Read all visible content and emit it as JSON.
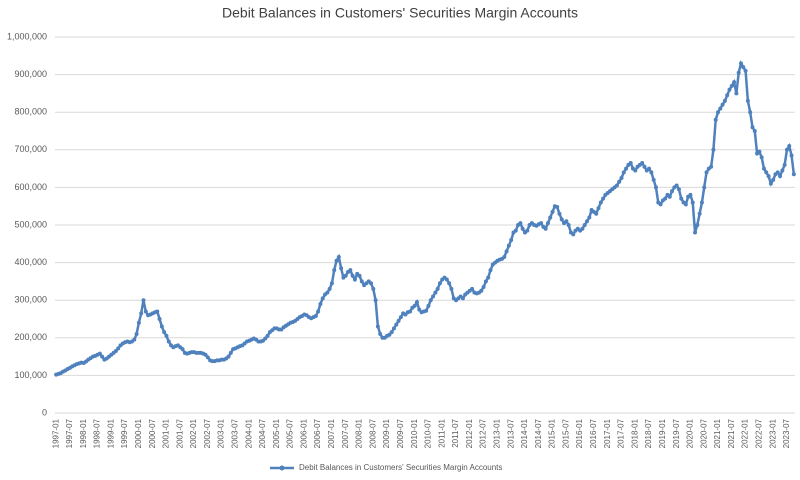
{
  "chart_data": {
    "type": "line",
    "title": "Debit Balances in Customers' Securities Margin Accounts",
    "categories": [
      "1997-01",
      null,
      null,
      null,
      null,
      null,
      "1997-07",
      null,
      null,
      null,
      null,
      null,
      "1998-01",
      null,
      null,
      null,
      null,
      null,
      "1998-07",
      null,
      null,
      null,
      null,
      null,
      "1999-01",
      null,
      null,
      null,
      null,
      null,
      "1999-07",
      null,
      null,
      null,
      null,
      null,
      "2000-01",
      null,
      null,
      null,
      null,
      null,
      "2000-07",
      null,
      null,
      null,
      null,
      null,
      "2001-01",
      null,
      null,
      null,
      null,
      null,
      "2001-07",
      null,
      null,
      null,
      null,
      null,
      "2002-01",
      null,
      null,
      null,
      null,
      null,
      "2002-07",
      null,
      null,
      null,
      null,
      null,
      "2003-01",
      null,
      null,
      null,
      null,
      null,
      "2003-07",
      null,
      null,
      null,
      null,
      null,
      "2004-01",
      null,
      null,
      null,
      null,
      null,
      "2004-07",
      null,
      null,
      null,
      null,
      null,
      "2005-01",
      null,
      null,
      null,
      null,
      null,
      "2005-07",
      null,
      null,
      null,
      null,
      null,
      "2006-01",
      null,
      null,
      null,
      null,
      null,
      "2006-07",
      null,
      null,
      null,
      null,
      null,
      "2007-01",
      null,
      null,
      null,
      null,
      null,
      "2007-07",
      null,
      null,
      null,
      null,
      null,
      "2008-01",
      null,
      null,
      null,
      null,
      null,
      "2008-07",
      null,
      null,
      null,
      null,
      null,
      "2009-01",
      null,
      null,
      null,
      null,
      null,
      "2009-07",
      null,
      null,
      null,
      null,
      null,
      "2010-01",
      null,
      null,
      null,
      null,
      null,
      "2010-07",
      null,
      null,
      null,
      null,
      null,
      "2011-01",
      null,
      null,
      null,
      null,
      null,
      "2011-07",
      null,
      null,
      null,
      null,
      null,
      "2012-01",
      null,
      null,
      null,
      null,
      null,
      "2012-07",
      null,
      null,
      null,
      null,
      null,
      "2013-01",
      null,
      null,
      null,
      null,
      null,
      "2013-07",
      null,
      null,
      null,
      null,
      null,
      "2014-01",
      null,
      null,
      null,
      null,
      null,
      "2014-07",
      null,
      null,
      null,
      null,
      null,
      "2015-01",
      null,
      null,
      null,
      null,
      null,
      "2015-07",
      null,
      null,
      null,
      null,
      null,
      "2016-01",
      null,
      null,
      null,
      null,
      null,
      "2016-07",
      null,
      null,
      null,
      null,
      null,
      "2017-01",
      null,
      null,
      null,
      null,
      null,
      "2017-07",
      null,
      null,
      null,
      null,
      null,
      "2018-01",
      null,
      null,
      null,
      null,
      null,
      "2018-07",
      null,
      null,
      null,
      null,
      null,
      "2019-01",
      null,
      null,
      null,
      null,
      null,
      "2019-07",
      null,
      null,
      null,
      null,
      null,
      "2020-01",
      null,
      null,
      null,
      null,
      null,
      "2020-07",
      null,
      null,
      null,
      null,
      null,
      "2021-01",
      null,
      null,
      null,
      null,
      null,
      "2021-07",
      null,
      null,
      null,
      null,
      null,
      "2022-01",
      null,
      null,
      null,
      null,
      null,
      "2022-07",
      null,
      null,
      null,
      null,
      null,
      "2023-01",
      null,
      null,
      null,
      null,
      null,
      "2023-07",
      null,
      null,
      null
    ],
    "series": [
      {
        "name": "Debit Balances in Customers' Securities Margin Accounts",
        "color": "#4f81bd",
        "values": [
          102000,
          104000,
          106000,
          110000,
          113000,
          117000,
          120000,
          124000,
          127000,
          130000,
          132000,
          134000,
          133000,
          137000,
          142000,
          146000,
          150000,
          152000,
          155000,
          158000,
          150000,
          142000,
          145000,
          150000,
          155000,
          160000,
          165000,
          172000,
          180000,
          185000,
          188000,
          190000,
          188000,
          190000,
          195000,
          210000,
          240000,
          265000,
          300000,
          270000,
          260000,
          262000,
          265000,
          268000,
          270000,
          250000,
          230000,
          215000,
          205000,
          190000,
          180000,
          175000,
          178000,
          180000,
          175000,
          170000,
          160000,
          158000,
          160000,
          162000,
          162000,
          160000,
          160000,
          160000,
          158000,
          155000,
          148000,
          140000,
          138000,
          138000,
          140000,
          140000,
          142000,
          142000,
          145000,
          150000,
          160000,
          170000,
          172000,
          175000,
          178000,
          180000,
          185000,
          190000,
          192000,
          195000,
          198000,
          195000,
          190000,
          190000,
          192000,
          198000,
          205000,
          215000,
          220000,
          225000,
          225000,
          222000,
          222000,
          228000,
          232000,
          236000,
          240000,
          242000,
          245000,
          250000,
          255000,
          258000,
          262000,
          260000,
          255000,
          252000,
          255000,
          258000,
          270000,
          290000,
          305000,
          315000,
          320000,
          330000,
          345000,
          380000,
          405000,
          415000,
          385000,
          360000,
          365000,
          375000,
          380000,
          365000,
          355000,
          370000,
          365000,
          350000,
          340000,
          345000,
          350000,
          345000,
          330000,
          300000,
          230000,
          210000,
          200000,
          200000,
          205000,
          208000,
          215000,
          225000,
          235000,
          245000,
          255000,
          265000,
          262000,
          268000,
          270000,
          280000,
          285000,
          295000,
          275000,
          268000,
          270000,
          272000,
          285000,
          300000,
          310000,
          320000,
          330000,
          345000,
          355000,
          360000,
          355000,
          345000,
          330000,
          305000,
          300000,
          305000,
          310000,
          305000,
          315000,
          320000,
          325000,
          330000,
          320000,
          318000,
          320000,
          325000,
          335000,
          350000,
          360000,
          380000,
          395000,
          400000,
          405000,
          408000,
          410000,
          415000,
          430000,
          445000,
          460000,
          480000,
          485000,
          500000,
          505000,
          490000,
          480000,
          485000,
          500000,
          505000,
          500000,
          498000,
          502000,
          505000,
          495000,
          490000,
          505000,
          520000,
          535000,
          550000,
          548000,
          530000,
          515000,
          505000,
          510000,
          500000,
          480000,
          475000,
          485000,
          490000,
          485000,
          490000,
          500000,
          510000,
          520000,
          540000,
          535000,
          530000,
          545000,
          560000,
          570000,
          580000,
          585000,
          590000,
          595000,
          600000,
          605000,
          615000,
          625000,
          640000,
          650000,
          660000,
          665000,
          650000,
          645000,
          655000,
          660000,
          665000,
          655000,
          645000,
          650000,
          640000,
          620000,
          600000,
          560000,
          555000,
          565000,
          570000,
          580000,
          575000,
          590000,
          600000,
          605000,
          595000,
          570000,
          560000,
          555000,
          575000,
          580000,
          560000,
          480000,
          500000,
          530000,
          560000,
          600000,
          640000,
          650000,
          655000,
          700000,
          780000,
          800000,
          810000,
          820000,
          830000,
          845000,
          860000,
          870000,
          880000,
          850000,
          905000,
          930000,
          920000,
          910000,
          830000,
          800000,
          760000,
          750000,
          690000,
          695000,
          680000,
          650000,
          640000,
          630000,
          610000,
          620000,
          635000,
          640000,
          630000,
          645000,
          660000,
          700000,
          710000,
          685000,
          635000
        ]
      }
    ],
    "ylim": [
      0,
      1000000
    ],
    "yticks": [
      0,
      {
        "value": 100000,
        "label": "100,000"
      },
      {
        "value": 200000,
        "label": "200,000"
      },
      {
        "value": 300000,
        "label": "300,000"
      },
      {
        "value": 400000,
        "label": "400,000"
      },
      {
        "value": 500000,
        "label": "500,000"
      },
      {
        "value": 600000,
        "label": "600,000"
      },
      {
        "value": 700000,
        "label": "700,000"
      },
      {
        "value": 800000,
        "label": "800,000"
      },
      {
        "value": 900000,
        "label": "900,000"
      },
      {
        "value": 1000000,
        "label": "1,000,000"
      }
    ],
    "grid": true,
    "legend": "bottom"
  }
}
